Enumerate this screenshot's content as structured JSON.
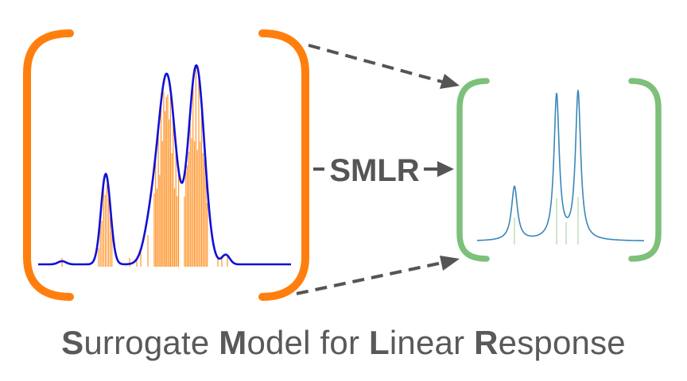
{
  "diagram": {
    "arrow_label": "SMLR",
    "colors": {
      "left_bracket": "#ff7f0e",
      "right_bracket": "#7cc07a",
      "left_curve": "#1010d8",
      "stick_lines": "#ff8c1a",
      "right_curve": "#3a86b8",
      "right_sticks": "#9ccf9b",
      "arrows": "#555555",
      "text": "#595959"
    }
  },
  "caption": {
    "part1_initial": "S",
    "part1_rest": "urrogate ",
    "part2_initial": "M",
    "part2_rest": "odel for ",
    "part3_initial": "L",
    "part3_rest": "inear ",
    "part4_initial": "R",
    "part4_rest": "esponse"
  }
}
